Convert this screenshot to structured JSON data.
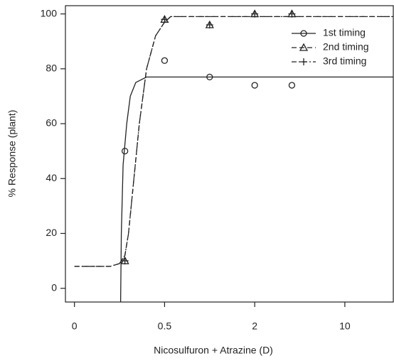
{
  "chart_data": {
    "type": "scatter",
    "x_label": "Nicosulfuron + Atrazine (D)",
    "y_label": "% Response (plant)",
    "xlim": [
      -0.05,
      14.3
    ],
    "xticks": [
      0,
      0.5,
      2,
      10
    ],
    "ylim": [
      -5,
      103
    ],
    "yticks": [
      0,
      20,
      40,
      60,
      80,
      100
    ],
    "legend": "top-right",
    "series": [
      {
        "name": "1st timing",
        "color": "#222222",
        "marker": "circle",
        "dash": "solid",
        "x": [
          0.28,
          0.5,
          1.25,
          2,
          5.3
        ],
        "values": [
          50,
          83,
          77,
          74,
          74
        ],
        "fit_x": [
          0.256,
          0.26,
          0.27,
          0.29,
          0.31,
          0.34,
          0.4,
          14.3
        ],
        "fit": [
          -5,
          20,
          45,
          60,
          70,
          75,
          77,
          77
        ]
      },
      {
        "name": "2nd timing",
        "color": "#222222",
        "marker": "triangle",
        "dash": "dashed",
        "x": [
          0.28,
          0.5,
          1.25,
          2,
          5.3
        ],
        "values": [
          10,
          98,
          96,
          100,
          100
        ],
        "fit_x": [
          0,
          0.2,
          0.25,
          0.28,
          0.3,
          0.33,
          0.36,
          0.4,
          0.45,
          0.5,
          0.6,
          14.3
        ],
        "fit": [
          8,
          8,
          9,
          12,
          20,
          40,
          60,
          80,
          92,
          97,
          99,
          99
        ]
      },
      {
        "name": "3rd timing",
        "color": "#222222",
        "marker": "plus",
        "dash": "dashdot",
        "x": [
          0.28,
          0.5,
          1.25,
          2,
          5.3
        ],
        "values": [
          10,
          98,
          96,
          100,
          100
        ],
        "fit_x": [
          0,
          0.2,
          0.25,
          0.28,
          0.3,
          0.33,
          0.36,
          0.4,
          0.45,
          0.5,
          0.6,
          14.3
        ],
        "fit": [
          8,
          8,
          9,
          12,
          20,
          40,
          60,
          80,
          92,
          97,
          99,
          99
        ]
      }
    ]
  }
}
